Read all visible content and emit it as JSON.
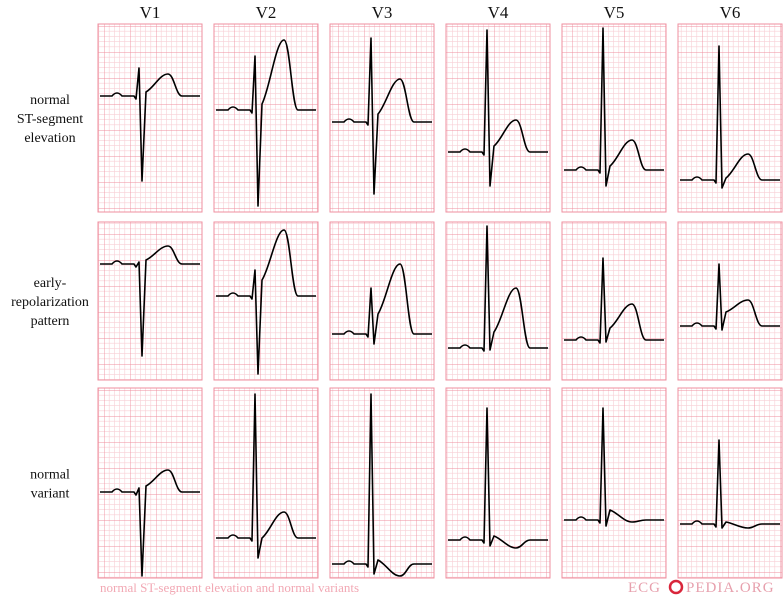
{
  "leads": [
    "V1",
    "V2",
    "V3",
    "V4",
    "V5",
    "V6"
  ],
  "row_labels": [
    [
      "normal",
      "ST-segment",
      "elevation"
    ],
    [
      "early-",
      "repolarization",
      "pattern"
    ],
    [
      "normal",
      "variant"
    ]
  ],
  "caption": "normal ST-segment elevation and normal variants",
  "logo": {
    "left": "ECG",
    "right": "PEDIA.ORG"
  }
}
